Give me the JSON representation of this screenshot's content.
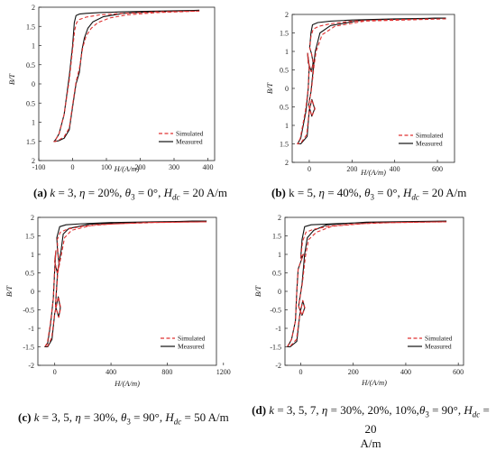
{
  "figure": {
    "captions": [
      {
        "letter": "(a)",
        "k": "k",
        "k_val": " = 3, ",
        "eta": "η",
        "eta_val": " = 20%, ",
        "theta": "θ",
        "theta_sub": "3",
        "theta_val": " = 0°, ",
        "hdc": "H",
        "hdc_sub": "dc",
        "hdc_val": " = 20 A/m"
      },
      {
        "letter": "(b)",
        "k": "k",
        "k_val": " = 5, ",
        "eta": "η",
        "eta_val": " = 40%, ",
        "theta": "θ",
        "theta_sub": "3",
        "theta_val": " = 0°, ",
        "hdc": "H",
        "hdc_sub": "dc",
        "hdc_val": " = 20 A/m"
      },
      {
        "letter": "(c)",
        "k": "k",
        "k_val": " = 3, 5, ",
        "eta": "η",
        "eta_val": " = 30%, ",
        "theta": "θ",
        "theta_sub": "3",
        "theta_val": " = 90°, ",
        "hdc": "H",
        "hdc_sub": "dc",
        "hdc_val": " = 50 A/m"
      },
      {
        "letter": "(d)",
        "k": "k",
        "k_val": " = 3, 5, 7, ",
        "eta": "η",
        "eta_val": " = 30%, 20%, 10%,",
        "theta": "θ",
        "theta_sub": "3",
        "theta_val": " = 90°, ",
        "hdc": "H",
        "hdc_sub": "dc",
        "hdc_val": " = 20",
        "line2": "A/m"
      }
    ]
  },
  "chart_data": [
    {
      "type": "line",
      "xlabel": "H/(A/m)",
      "ylabel": "B/T",
      "xlim": [
        -100,
        420
      ],
      "ylim": [
        -2,
        2
      ],
      "xticks": [
        "-100",
        "0",
        "100",
        "200",
        "300",
        "400"
      ],
      "yticks": [
        "2",
        "1.5",
        "1",
        "0.5",
        "0",
        "0.5",
        "1",
        "1.5",
        "2"
      ],
      "legend": [
        "Simulated",
        "Measured"
      ],
      "legend_position": "bottom-right",
      "series": [
        {
          "name": "Measured",
          "color": "#111111",
          "style": "solid",
          "x": [
            375,
            250,
            150,
            80,
            40,
            20,
            10,
            5,
            0,
            -10,
            -25,
            -40,
            -50,
            -55,
            -52,
            -40,
            -25,
            -10,
            0,
            10,
            20,
            28,
            35,
            45,
            60,
            90,
            150,
            250,
            375
          ],
          "y": [
            1.92,
            1.9,
            1.88,
            1.86,
            1.84,
            1.82,
            1.78,
            1.6,
            1.0,
            0.2,
            -0.8,
            -1.3,
            -1.45,
            -1.5,
            -1.5,
            -1.48,
            -1.42,
            -1.2,
            -0.6,
            0.0,
            0.3,
            0.9,
            1.2,
            1.45,
            1.62,
            1.75,
            1.84,
            1.89,
            1.92
          ]
        },
        {
          "name": "Simulated",
          "color": "#e03030",
          "style": "dashed",
          "x": [
            375,
            250,
            150,
            80,
            40,
            20,
            12,
            6,
            0,
            -10,
            -25,
            -40,
            -50,
            -55,
            -52,
            -40,
            -25,
            -10,
            0,
            10,
            20,
            30,
            40,
            55,
            75,
            110,
            160,
            250,
            375
          ],
          "y": [
            1.9,
            1.88,
            1.84,
            1.8,
            1.74,
            1.68,
            1.6,
            1.4,
            0.9,
            0.1,
            -0.8,
            -1.3,
            -1.45,
            -1.5,
            -1.5,
            -1.46,
            -1.38,
            -1.15,
            -0.55,
            0.05,
            0.4,
            0.95,
            1.25,
            1.45,
            1.6,
            1.72,
            1.8,
            1.86,
            1.9
          ]
        }
      ]
    },
    {
      "type": "line",
      "xlabel": "H/(A/m)",
      "ylabel": "B/T",
      "xlim": [
        -80,
        680
      ],
      "ylim": [
        -2,
        2
      ],
      "xticks": [
        "0",
        "200",
        "400",
        "600"
      ],
      "yticks": [
        "2",
        "1.5",
        "1",
        "0.5",
        "0",
        "0.5",
        "1",
        "1.5",
        "2"
      ],
      "legend": [
        "Simulated",
        "Measured"
      ],
      "legend_position": "bottom-right",
      "series": [
        {
          "name": "Measured",
          "color": "#111111",
          "style": "solid",
          "x": [
            640,
            400,
            200,
            100,
            40,
            15,
            8,
            2,
            10,
            18,
            10,
            -5,
            -8,
            0,
            -5,
            -15,
            -40,
            -55,
            -40,
            -10,
            0,
            12,
            25,
            12,
            -3,
            8,
            20,
            28,
            50,
            100,
            250,
            640
          ],
          "y": [
            1.9,
            1.88,
            1.85,
            1.82,
            1.78,
            1.72,
            1.5,
            1.1,
            0.95,
            0.7,
            0.45,
            0.7,
            0.95,
            0.6,
            0.0,
            -0.6,
            -1.35,
            -1.5,
            -1.5,
            -1.3,
            -0.6,
            -0.3,
            -0.55,
            -0.75,
            -0.45,
            -0.1,
            0.6,
            1.0,
            1.5,
            1.7,
            1.85,
            1.9
          ]
        },
        {
          "name": "Simulated",
          "color": "#e03030",
          "style": "dashed",
          "x": [
            640,
            400,
            200,
            100,
            45,
            18,
            8,
            2,
            10,
            20,
            10,
            -5,
            -8,
            0,
            -5,
            -18,
            -42,
            -55,
            -40,
            -12,
            0,
            12,
            27,
            12,
            -3,
            10,
            22,
            32,
            60,
            120,
            260,
            640
          ],
          "y": [
            1.88,
            1.86,
            1.82,
            1.75,
            1.68,
            1.6,
            1.4,
            1.1,
            0.95,
            0.7,
            0.45,
            0.7,
            0.95,
            0.6,
            0.0,
            -0.6,
            -1.35,
            -1.5,
            -1.48,
            -1.25,
            -0.6,
            -0.3,
            -0.55,
            -0.75,
            -0.45,
            -0.05,
            0.6,
            1.0,
            1.45,
            1.68,
            1.82,
            1.88
          ]
        }
      ]
    },
    {
      "type": "line",
      "xlabel": "H/(A/m)",
      "ylabel": "B/T",
      "xlim": [
        -120,
        1150
      ],
      "ylim": [
        -2,
        2
      ],
      "xticks": [
        "0",
        "400",
        "800",
        "1200"
      ],
      "yticks": [
        "2",
        "1.5",
        "1",
        "0.5",
        "0",
        "-0.5",
        "-1",
        "-1.5",
        "-2"
      ],
      "legend": [
        "Simulated",
        "Measured"
      ],
      "legend_position": "bottom-right",
      "series": [
        {
          "name": "Measured",
          "color": "#111111",
          "style": "solid",
          "x": [
            1080,
            700,
            400,
            200,
            80,
            35,
            15,
            20,
            30,
            18,
            0,
            8,
            0,
            -10,
            -30,
            -50,
            -70,
            -50,
            -20,
            0,
            25,
            40,
            28,
            5,
            20,
            45,
            60,
            100,
            250,
            600,
            1080
          ],
          "y": [
            1.9,
            1.88,
            1.86,
            1.83,
            1.8,
            1.75,
            1.45,
            1.1,
            0.75,
            0.5,
            0.8,
            1.1,
            0.6,
            -0.2,
            -0.9,
            -1.4,
            -1.5,
            -1.5,
            -1.3,
            -0.6,
            -0.15,
            -0.45,
            -0.7,
            -0.4,
            0.5,
            1.1,
            1.55,
            1.7,
            1.82,
            1.87,
            1.9
          ]
        },
        {
          "name": "Simulated",
          "color": "#e03030",
          "style": "dashed",
          "x": [
            1080,
            700,
            400,
            200,
            90,
            40,
            18,
            22,
            32,
            18,
            0,
            8,
            0,
            -10,
            -32,
            -52,
            -70,
            -50,
            -22,
            0,
            26,
            42,
            28,
            5,
            22,
            50,
            70,
            120,
            280,
            650,
            1080
          ],
          "y": [
            1.88,
            1.86,
            1.82,
            1.76,
            1.68,
            1.6,
            1.4,
            1.1,
            0.75,
            0.5,
            0.8,
            1.1,
            0.6,
            -0.2,
            -0.9,
            -1.38,
            -1.5,
            -1.48,
            -1.25,
            -0.6,
            -0.15,
            -0.45,
            -0.7,
            -0.4,
            0.5,
            1.05,
            1.45,
            1.65,
            1.8,
            1.86,
            1.88
          ]
        }
      ]
    },
    {
      "type": "line",
      "xlabel": "H/(A/m)",
      "ylabel": "B/T",
      "xlim": [
        -60,
        620
      ],
      "ylim": [
        -2,
        2
      ],
      "xticks": [
        "0",
        "200",
        "400",
        "600"
      ],
      "yticks": [
        "2",
        "1.5",
        "1",
        "0.5",
        "0",
        "-0.5",
        "-1",
        "-1.5",
        "-2"
      ],
      "legend": [
        "Simulated",
        "Measured"
      ],
      "legend_position": "bottom-right",
      "series": [
        {
          "name": "Measured",
          "color": "#111111",
          "style": "solid",
          "x": [
            555,
            350,
            200,
            100,
            40,
            15,
            5,
            0,
            10,
            0,
            -10,
            -15,
            -20,
            -35,
            -50,
            -40,
            -15,
            -3,
            8,
            15,
            5,
            -8,
            5,
            15,
            25,
            50,
            100,
            250,
            555
          ],
          "y": [
            1.9,
            1.88,
            1.85,
            1.82,
            1.8,
            1.75,
            1.4,
            0.9,
            1.0,
            0.8,
            0.6,
            0.0,
            -0.8,
            -1.3,
            -1.5,
            -1.5,
            -1.35,
            -0.6,
            -0.25,
            -0.45,
            -0.65,
            -0.4,
            0.2,
            1.0,
            1.45,
            1.65,
            1.8,
            1.87,
            1.9
          ]
        },
        {
          "name": "Simulated",
          "color": "#e03030",
          "style": "dashed",
          "x": [
            555,
            350,
            200,
            110,
            50,
            20,
            7,
            0,
            10,
            0,
            -10,
            -15,
            -20,
            -35,
            -50,
            -40,
            -16,
            -3,
            8,
            16,
            5,
            -8,
            6,
            18,
            30,
            60,
            120,
            270,
            555
          ],
          "y": [
            1.88,
            1.86,
            1.82,
            1.76,
            1.68,
            1.6,
            1.35,
            0.9,
            1.0,
            0.8,
            0.6,
            0.0,
            -0.8,
            -1.3,
            -1.48,
            -1.48,
            -1.3,
            -0.6,
            -0.25,
            -0.45,
            -0.65,
            -0.4,
            0.2,
            0.95,
            1.4,
            1.6,
            1.76,
            1.85,
            1.88
          ]
        }
      ]
    }
  ]
}
